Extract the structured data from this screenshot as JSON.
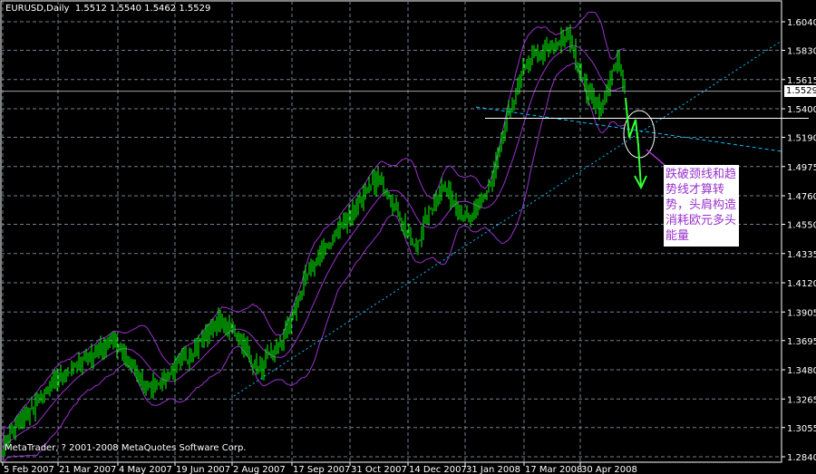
{
  "header": {
    "symbol": "EURUSD",
    "timeframe": "Daily",
    "ohlc_text": "1.5512 1.5540 1.5462 1.5529"
  },
  "footer": {
    "copyright": "MetaTrader, ? 2001-2008 MetaQuotes Software Corp."
  },
  "annotation": {
    "text": "跌破颈线和趋势线才算转势，头肩构造消耗欧元多头能量"
  },
  "colors": {
    "background": "#000000",
    "bars": "#00ff00",
    "bollinger": "#9932cc",
    "trendline": "#00bfff",
    "grid": "#708090",
    "arrow": "#33ff33",
    "annotation_text": "#9932cc"
  },
  "chart_data": {
    "type": "ohlc",
    "title": "EURUSD,Daily",
    "current_price": "1.5529",
    "neckline_price": 1.533,
    "ylim": [
      1.284,
      1.604
    ],
    "y_ticks": [
      "1.6040",
      "1.5830",
      "1.5615",
      "1.5400",
      "1.5190",
      "1.4975",
      "1.4760",
      "1.4550",
      "1.4335",
      "1.4120",
      "1.3905",
      "1.3695",
      "1.3480",
      "1.3265",
      "1.3055",
      "1.2840"
    ],
    "x_ticks": [
      {
        "label": "5 Feb 2007",
        "date": "2007-02-05"
      },
      {
        "label": "21 Mar 2007",
        "date": "2007-03-21"
      },
      {
        "label": "4 May 2007",
        "date": "2007-05-04"
      },
      {
        "label": "19 Jun 2007",
        "date": "2007-06-19"
      },
      {
        "label": "2 Aug 2007",
        "date": "2007-08-02"
      },
      {
        "label": "17 Sep 2007",
        "date": "2007-09-17"
      },
      {
        "label": "31 Oct 2007",
        "date": "2007-10-31"
      },
      {
        "label": "14 Dec 2007",
        "date": "2007-12-14"
      },
      {
        "label": "31 Jan 2008",
        "date": "2008-01-31"
      },
      {
        "label": "17 Mar 2008",
        "date": "2008-03-17"
      },
      {
        "label": "30 Apr 2008",
        "date": "2008-04-30"
      }
    ],
    "approx_close_path": [
      [
        "2007-02-05",
        1.293
      ],
      [
        "2007-03-19",
        1.34
      ],
      [
        "2007-04-30",
        1.37
      ],
      [
        "2007-05-28",
        1.333
      ],
      [
        "2007-06-24",
        1.353
      ],
      [
        "2007-07-22",
        1.383
      ],
      [
        "2007-08-05",
        1.376
      ],
      [
        "2007-08-22",
        1.347
      ],
      [
        "2007-09-08",
        1.366
      ],
      [
        "2007-09-30",
        1.42
      ],
      [
        "2007-10-26",
        1.457
      ],
      [
        "2007-11-22",
        1.49
      ],
      [
        "2007-12-05",
        1.467
      ],
      [
        "2007-12-19",
        1.437
      ],
      [
        "2008-01-11",
        1.484
      ],
      [
        "2008-02-04",
        1.457
      ],
      [
        "2008-02-21",
        1.487
      ],
      [
        "2008-03-04",
        1.533
      ],
      [
        "2008-03-18",
        1.573
      ],
      [
        "2008-04-04",
        1.583
      ],
      [
        "2008-04-21",
        1.593
      ],
      [
        "2008-05-05",
        1.553
      ],
      [
        "2008-05-16",
        1.54
      ],
      [
        "2008-05-29",
        1.577
      ],
      [
        "2008-06-04",
        1.5529
      ]
    ],
    "indicators": [
      "Bollinger Bands"
    ],
    "grid": true
  }
}
